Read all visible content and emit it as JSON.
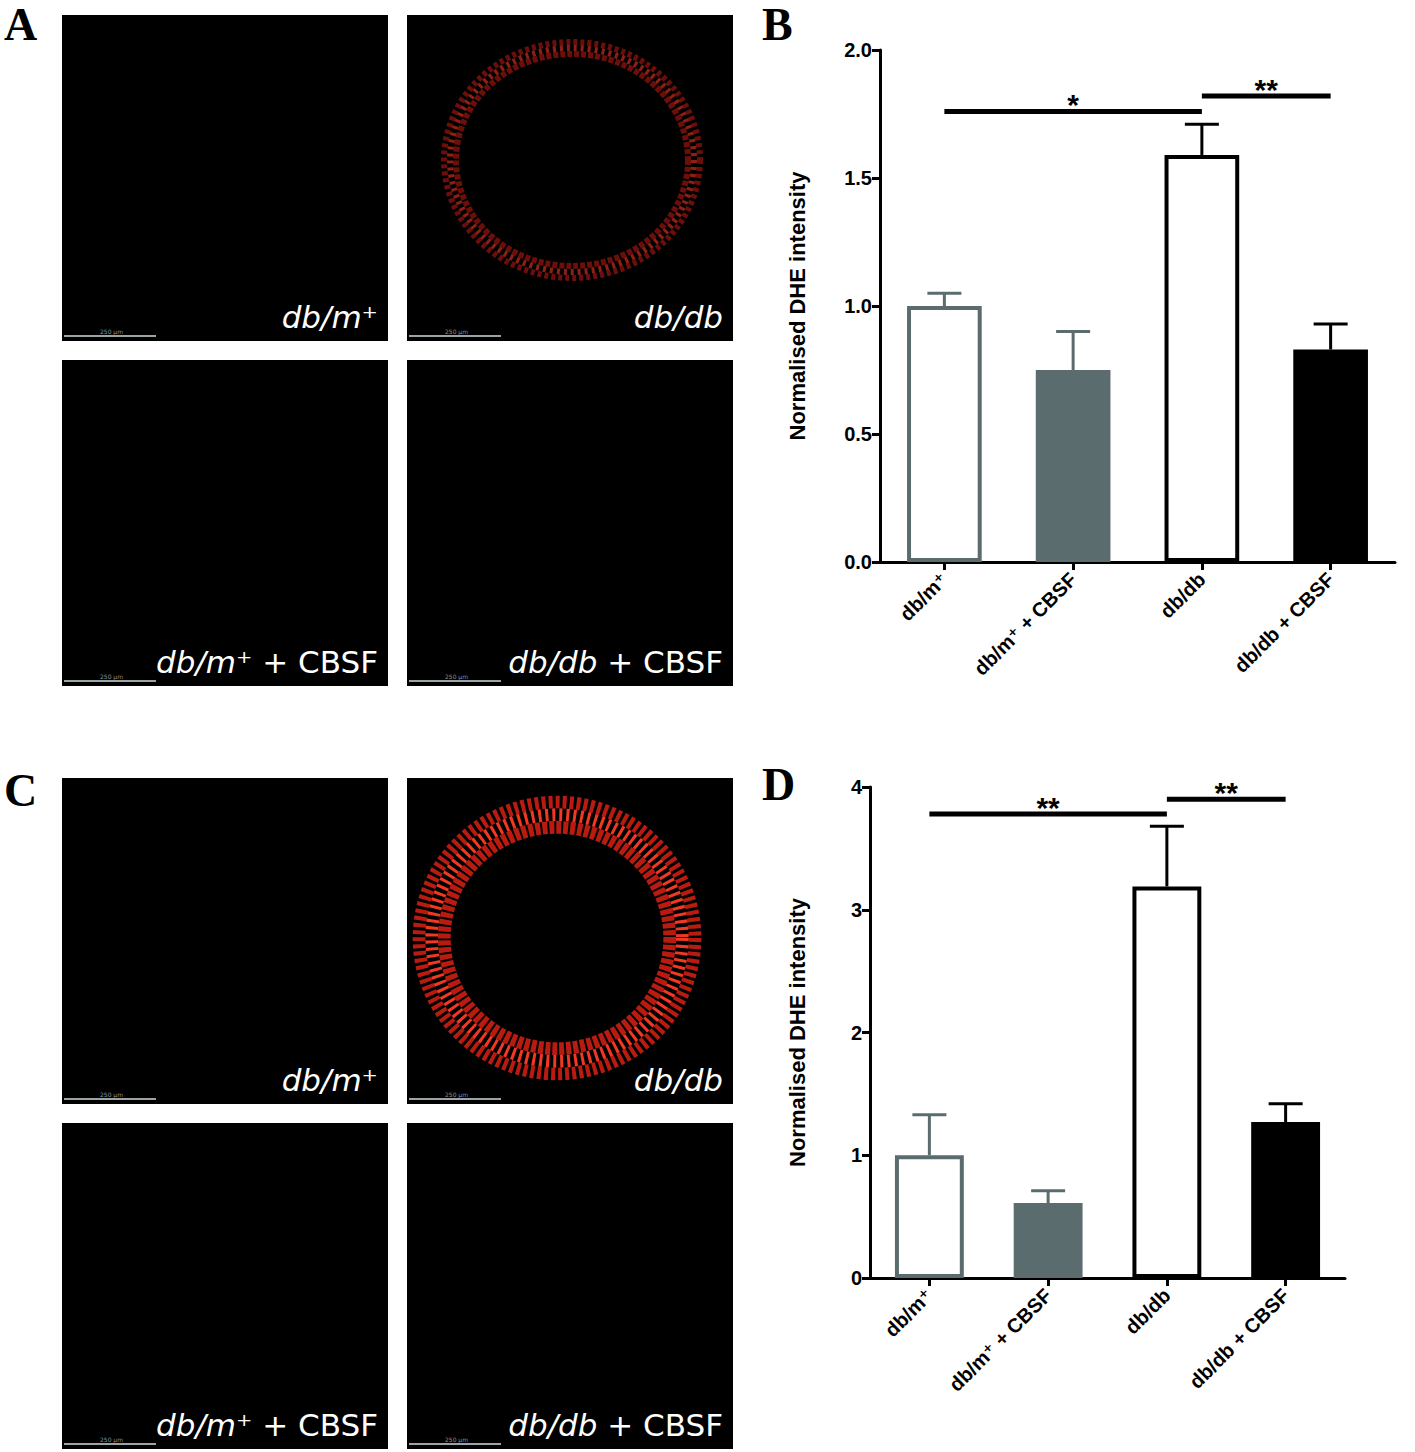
{
  "image_panels": [
    {
      "panel_label": "A",
      "scale_bar": "250 µm",
      "images": [
        {
          "genotype": "db/m⁺",
          "red_ring": false
        },
        {
          "genotype": "db/db",
          "red_ring": true
        },
        {
          "genotype": "db/m⁺",
          "treatment": "+ CBSF",
          "red_ring": false
        },
        {
          "genotype": "db/db",
          "treatment": "+ CBSF",
          "red_ring": false
        }
      ]
    },
    {
      "panel_label": "C",
      "scale_bar": "250 µm",
      "images": [
        {
          "genotype": "db/m⁺",
          "red_ring": false
        },
        {
          "genotype": "db/db",
          "red_ring": true
        },
        {
          "genotype": "db/m⁺",
          "treatment": "+ CBSF",
          "red_ring": false
        },
        {
          "genotype": "db/db",
          "treatment": "+ CBSF",
          "red_ring": false
        }
      ]
    }
  ],
  "chart_data": [
    {
      "panel_label": "B",
      "type": "bar",
      "y_label": "Normalised DHE intensity",
      "categories": [
        "db/m⁺",
        "db/m⁺ + CBSF",
        "db/db",
        "db/db + CBSF"
      ],
      "values": [
        1.0,
        0.75,
        1.59,
        0.83
      ],
      "errors": [
        0.05,
        0.15,
        0.12,
        0.1
      ],
      "colors": [
        "#5b6c6f",
        "#5b6c6f",
        "#000000",
        "#000000"
      ],
      "ylim": [
        0,
        2
      ],
      "yticks": [
        {
          "value": 0,
          "label": "0.0"
        },
        {
          "value": 0.5,
          "label": "0.5"
        },
        {
          "value": 1,
          "label": "1.0"
        },
        {
          "value": 1.5,
          "label": "1.5"
        },
        {
          "value": 2,
          "label": "2.0"
        }
      ],
      "grid": false,
      "annotations": [
        {
          "text": "*",
          "from": "db/m⁺",
          "to": "db/db"
        },
        {
          "text": "**",
          "from": "db/db",
          "to": "db/db + CBSF"
        }
      ]
    },
    {
      "panel_label": "D",
      "type": "bar",
      "y_label": "Normalised DHE intensity",
      "categories": [
        "db/m⁺",
        "db/m⁺ + CBSF",
        "db/db",
        "db/db + CBSF"
      ],
      "values": [
        1.0,
        0.61,
        3.19,
        1.27
      ],
      "errors": [
        0.33,
        0.1,
        0.49,
        0.15
      ],
      "colors": [
        "#5b6c6f",
        "#5b6c6f",
        "#000000",
        "#000000"
      ],
      "ylim": [
        0,
        4
      ],
      "yticks": [
        0,
        1,
        2,
        3,
        4
      ],
      "grid": false,
      "annotations": [
        {
          "text": "**",
          "from": "db/m⁺",
          "to": "db/db"
        },
        {
          "text": "**",
          "from": "db/db",
          "to": "db/db + CBSF"
        }
      ]
    }
  ]
}
